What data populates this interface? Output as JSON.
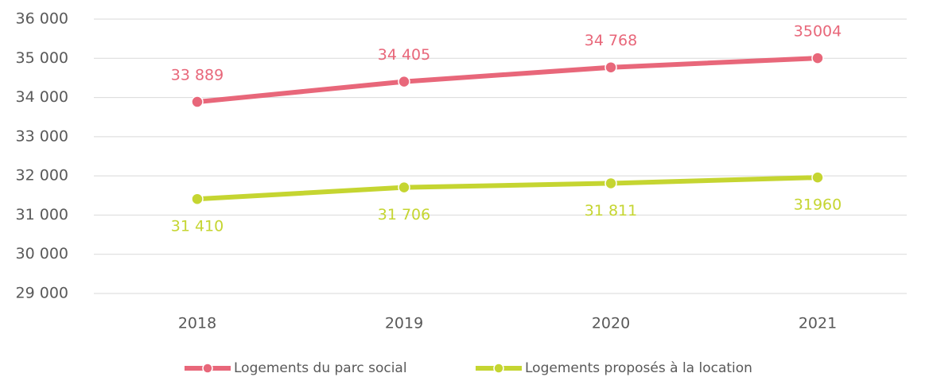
{
  "chart_data": {
    "type": "line",
    "categories": [
      "2018",
      "2019",
      "2020",
      "2021"
    ],
    "series": [
      {
        "name": "Logements du parc social",
        "color": "#e8677a",
        "values": [
          33889,
          34405,
          34768,
          35004
        ],
        "value_labels": [
          "33 889",
          "34 405",
          "34 768",
          "35004"
        ],
        "label_position": "above"
      },
      {
        "name": "Logements proposés à la location",
        "color": "#c5d531",
        "values": [
          31410,
          31706,
          31811,
          31960
        ],
        "value_labels": [
          "31 410",
          "31 706",
          "31 811",
          "31960"
        ],
        "label_position": "below"
      }
    ],
    "ylim": [
      29000,
      36000
    ],
    "yticks": [
      {
        "value": 29000,
        "label": "29 000"
      },
      {
        "value": 30000,
        "label": "30 000"
      },
      {
        "value": 31000,
        "label": "31 000"
      },
      {
        "value": 32000,
        "label": "32 000"
      },
      {
        "value": 33000,
        "label": "33 000"
      },
      {
        "value": 34000,
        "label": "34 000"
      },
      {
        "value": 35000,
        "label": "35 000"
      },
      {
        "value": 36000,
        "label": "36 000"
      }
    ],
    "grid": true,
    "legend": "bottom"
  }
}
